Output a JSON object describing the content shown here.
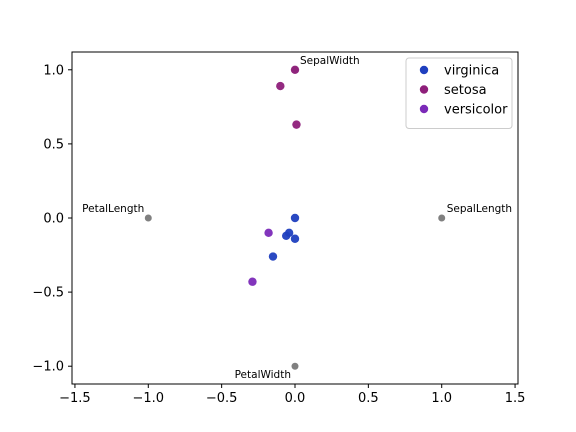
{
  "chart_data": {
    "type": "scatter",
    "title": "",
    "xlabel": "",
    "ylabel": "",
    "xlim": [
      -1.52,
      1.52
    ],
    "ylim": [
      -1.12,
      1.12
    ],
    "x_ticks": [
      -1.5,
      -1.0,
      -0.5,
      0.0,
      0.5,
      1.0,
      1.5
    ],
    "x_tick_labels": [
      "−1.5",
      "−1.0",
      "−0.5",
      "0.0",
      "0.5",
      "1.0",
      "1.5"
    ],
    "y_ticks": [
      -1.0,
      -0.5,
      0.0,
      0.5,
      1.0
    ],
    "y_tick_labels": [
      "−1.0",
      "−0.5",
      "0.0",
      "0.5",
      "1.0"
    ],
    "grid": false,
    "legend_position": "top-right",
    "anchors": [
      {
        "name": "SepalLength",
        "x": 1.0,
        "y": 0.0,
        "label_side": "above-right"
      },
      {
        "name": "SepalWidth",
        "x": 0.0,
        "y": 1.0,
        "label_side": "above-right"
      },
      {
        "name": "PetalLength",
        "x": -1.0,
        "y": 0.0,
        "label_side": "above-left"
      },
      {
        "name": "PetalWidth",
        "x": 0.0,
        "y": -1.0,
        "label_side": "below-left"
      }
    ],
    "anchor_color": "#808080",
    "series": [
      {
        "name": "virginica",
        "color": "#1f3fbf",
        "points": [
          [
            0.0,
            0.0
          ],
          [
            -0.04,
            -0.1
          ],
          [
            -0.06,
            -0.12
          ],
          [
            0.0,
            -0.14
          ],
          [
            -0.15,
            -0.26
          ]
        ]
      },
      {
        "name": "setosa",
        "color": "#8e1f7a",
        "points": [
          [
            -0.1,
            0.89
          ],
          [
            0.01,
            0.63
          ],
          [
            0.0,
            1.0
          ]
        ]
      },
      {
        "name": "versicolor",
        "color": "#7b2ab8",
        "points": [
          [
            -0.18,
            -0.1
          ],
          [
            -0.29,
            -0.43
          ]
        ]
      }
    ]
  }
}
